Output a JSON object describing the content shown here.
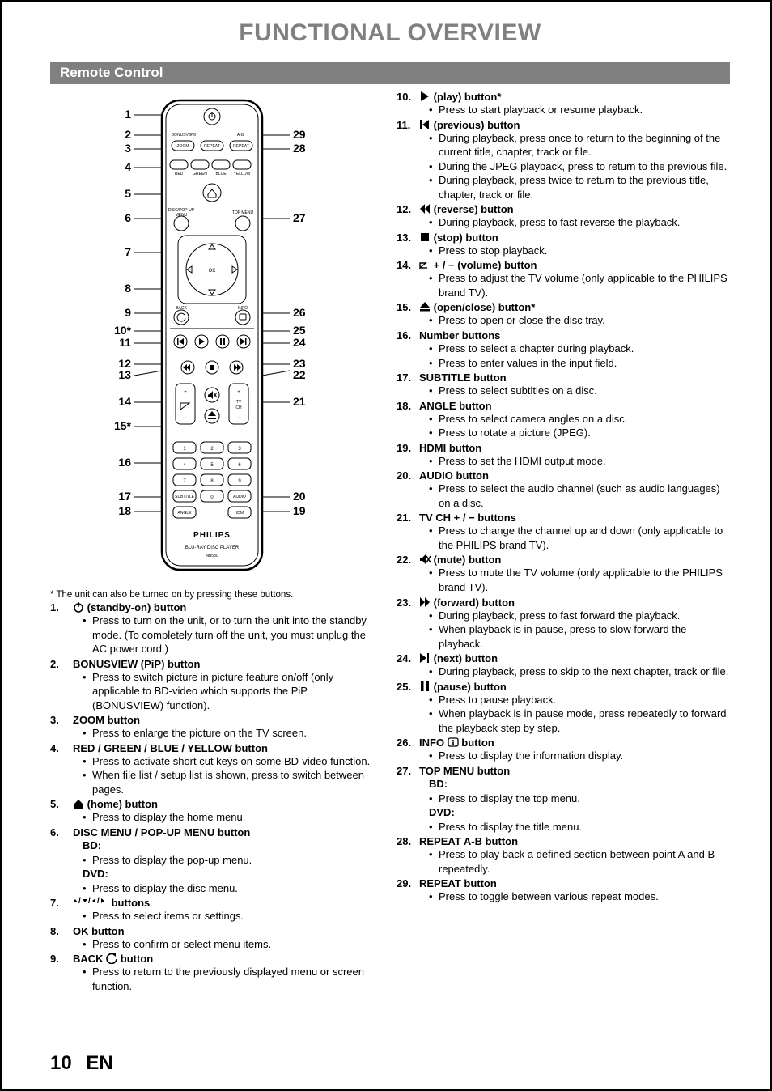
{
  "page": {
    "title": "FUNCTIONAL OVERVIEW",
    "section": "Remote Control",
    "footnote": "* The unit can also be turned on by pressing these buttons.",
    "number": "10",
    "lang": "EN"
  },
  "colors": {
    "title_gray": "#808080",
    "bar_gray": "#808080",
    "text": "#000000",
    "bg": "#ffffff"
  },
  "remote": {
    "brand": "PHILIPS",
    "sub1": "BLU-RAY DISC PLAYER",
    "sub2": "NB530",
    "left_callouts": [
      "1",
      "2",
      "3",
      "4",
      "5",
      "6",
      "7",
      "8",
      "9",
      "10*",
      "11",
      "12",
      "13",
      "14",
      "15*",
      "16",
      "17",
      "18"
    ],
    "right_callouts": [
      "29",
      "28",
      "27",
      "26",
      "25",
      "24",
      "23",
      "22",
      "21",
      "20",
      "19"
    ],
    "label_zoom": "ZOOM",
    "label_repeat": "REPEAT",
    "label_ab": "A-B",
    "label_bonus": "BONUSVIEW",
    "label_repeat2": "REPEAT",
    "label_red": "RED",
    "label_green": "GREEN",
    "label_blue": "BLUE",
    "label_yellow": "YELLOW",
    "label_discmenu1": "DISC/POP-UP",
    "label_discmenu2": "MENU",
    "label_topmenu": "TOP MENU",
    "label_back": "BACK",
    "label_info": "INFO",
    "label_ok": "OK",
    "label_tv": "TV",
    "label_ch": "CH",
    "label_subtitle": "SUBTITLE",
    "label_audio": "AUDIO",
    "label_angle": "ANGLE",
    "label_hdmi": "HDMI",
    "num_1": "1",
    "num_2": "2",
    "num_3": "3",
    "num_4": "4",
    "num_5": "5",
    "num_6": "6",
    "num_7": "7",
    "num_8": "8",
    "num_9": "9",
    "num_0": "0"
  },
  "left_items": [
    {
      "num": "1.",
      "icon": "power",
      "label": " (standby-on) button",
      "subs": [
        "Press to turn on the unit, or to turn the unit into the standby mode. (To completely turn off the unit, you must unplug the AC power cord.)"
      ]
    },
    {
      "num": "2.",
      "label": "BONUSVIEW (PiP) button",
      "subs": [
        "Press to switch picture in picture feature on/off (only applicable to BD-video which supports the PiP (BONUSVIEW) function)."
      ]
    },
    {
      "num": "3.",
      "label": "ZOOM button",
      "subs": [
        "Press to enlarge the picture on the TV screen."
      ]
    },
    {
      "num": "4.",
      "label": "RED / GREEN / BLUE / YELLOW  button",
      "subs": [
        "Press to activate short cut keys on some BD-video function.",
        "When file list / setup list is shown, press to switch between pages."
      ]
    },
    {
      "num": "5.",
      "icon": "home",
      "label": " (home) button",
      "subs": [
        "Press to display the home menu."
      ]
    },
    {
      "num": "6.",
      "label": "DISC MENU / POP-UP MENU button",
      "bd_dvd": true,
      "bd_sub": "Press to display the pop-up menu.",
      "dvd_sub": "Press to display the disc menu."
    },
    {
      "num": "7.",
      "icon": "arrows",
      "label": " buttons",
      "subs": [
        "Press to select items or settings."
      ]
    },
    {
      "num": "8.",
      "label": "OK button",
      "subs": [
        "Press to confirm or select menu items."
      ]
    },
    {
      "num": "9.",
      "label_pre": "BACK ",
      "icon": "back",
      "label": " button",
      "subs": [
        "Press to return to the previously displayed menu or screen function."
      ]
    }
  ],
  "right_items": [
    {
      "num": "10.",
      "icon": "play",
      "label": " (play) button*",
      "subs": [
        "Press to start playback or resume playback."
      ]
    },
    {
      "num": "11.",
      "icon": "prev",
      "label": " (previous) button",
      "subs": [
        "During playback, press once to return to the beginning of the current title, chapter, track or file.",
        "During the JPEG playback, press to return to the previous file.",
        "During playback, press twice to return to the previous title, chapter, track or file."
      ]
    },
    {
      "num": "12.",
      "icon": "rew",
      "label": " (reverse) button",
      "subs": [
        "During playback, press to fast reverse the playback."
      ]
    },
    {
      "num": "13.",
      "icon": "stop",
      "label": " (stop) button",
      "subs": [
        "Press to stop playback."
      ]
    },
    {
      "num": "14.",
      "icon": "vol",
      "label": " + / − (volume) button",
      "subs": [
        "Press to adjust the TV volume (only applicable to the PHILIPS brand TV)."
      ]
    },
    {
      "num": "15.",
      "icon": "eject",
      "label": " (open/close) button*",
      "subs": [
        "Press to open or close the disc tray."
      ]
    },
    {
      "num": "16.",
      "label": "Number buttons",
      "subs": [
        "Press to select a chapter during playback.",
        "Press to enter values in the input field."
      ]
    },
    {
      "num": "17.",
      "label": "SUBTITLE button",
      "subs": [
        "Press to select subtitles on a disc."
      ]
    },
    {
      "num": "18.",
      "label": "ANGLE button",
      "subs": [
        "Press to select camera angles on a disc.",
        "Press to rotate a picture (JPEG)."
      ]
    },
    {
      "num": "19.",
      "label": "HDMI button",
      "subs": [
        "Press to set the HDMI output mode."
      ]
    },
    {
      "num": "20.",
      "label": "AUDIO button",
      "subs": [
        "Press to select the audio channel (such as audio languages) on a disc."
      ]
    },
    {
      "num": "21.",
      "label": "TV CH + / −  buttons",
      "subs": [
        "Press to change the channel up and down (only applicable to the PHILIPS brand TV)."
      ]
    },
    {
      "num": "22.",
      "icon": "mute",
      "label": " (mute) button",
      "subs": [
        "Press to mute the TV volume (only applicable to the PHILIPS brand TV)."
      ]
    },
    {
      "num": "23.",
      "icon": "ffwd",
      "label": " (forward) button",
      "subs": [
        "During playback, press to fast forward the playback.",
        "When playback is in pause, press to slow forward the playback."
      ]
    },
    {
      "num": "24.",
      "icon": "next",
      "label": " (next) button",
      "subs": [
        "During playback, press to skip to the next chapter, track or file."
      ]
    },
    {
      "num": "25.",
      "icon": "pause",
      "label": " (pause) button",
      "subs": [
        "Press to pause playback.",
        "When playback is in pause mode, press repeatedly to forward the playback step by step."
      ]
    },
    {
      "num": "26.",
      "label_pre": "INFO ",
      "icon": "infob",
      "label": " button",
      "subs": [
        "Press to display the information display."
      ]
    },
    {
      "num": "27.",
      "label": "TOP MENU button",
      "bd_dvd": true,
      "bd_sub": "Press to display the top menu.",
      "dvd_sub": "Press to display the title menu."
    },
    {
      "num": "28.",
      "label": "REPEAT A-B button",
      "subs": [
        "Press to play back a defined section between point A and B repeatedly."
      ]
    },
    {
      "num": "29.",
      "label": "REPEAT button",
      "subs": [
        "Press to toggle between various repeat modes."
      ]
    }
  ]
}
